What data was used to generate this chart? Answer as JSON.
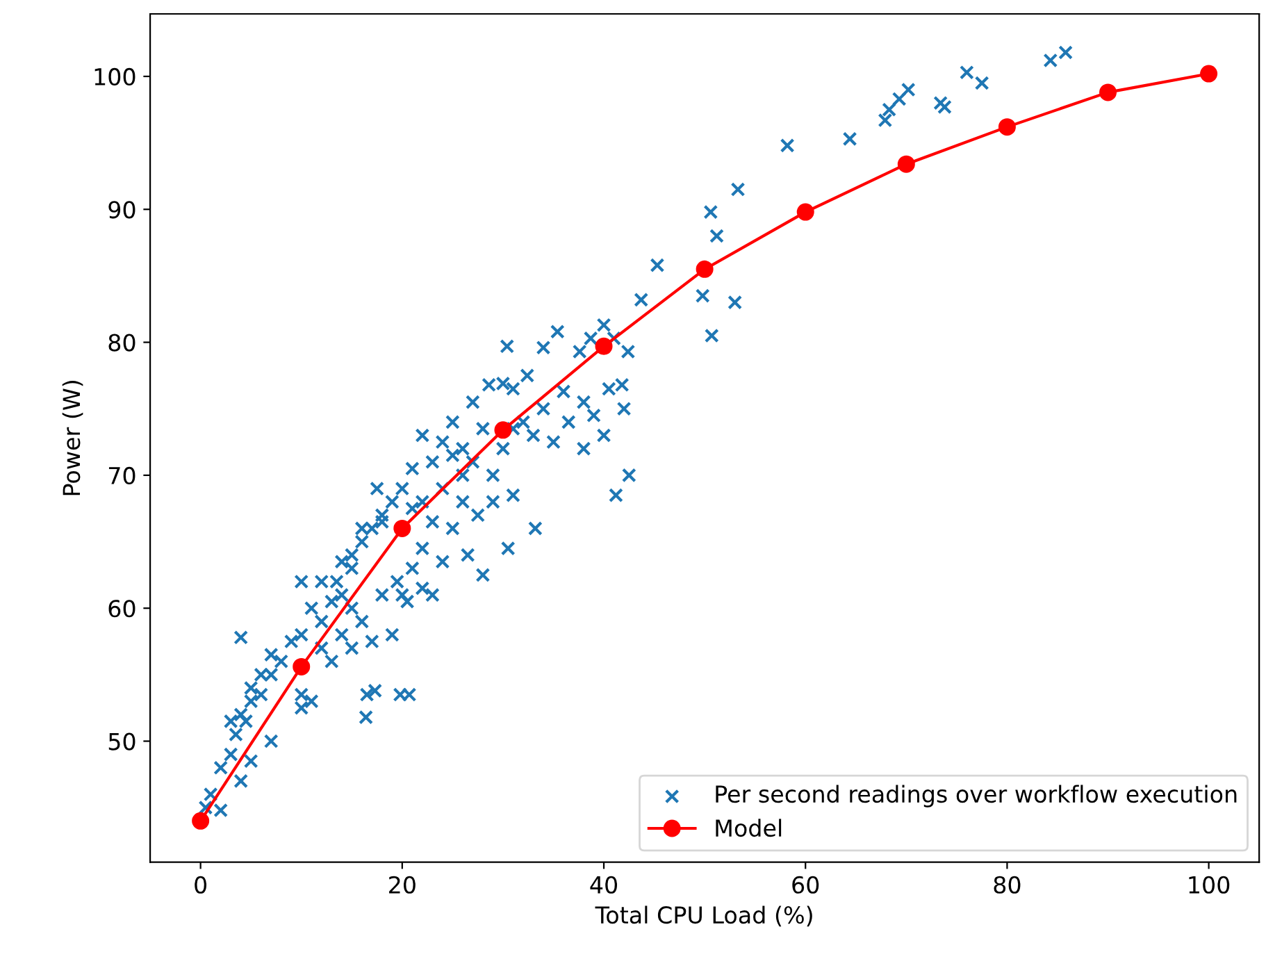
{
  "chart_data": {
    "type": "scatter",
    "xlabel": "Total CPU Load (%)",
    "ylabel": "Power (W)",
    "xlim": [
      -5,
      105
    ],
    "ylim": [
      40.9,
      104.7
    ],
    "xticks": [
      0,
      20,
      40,
      60,
      80,
      100
    ],
    "yticks": [
      50,
      60,
      70,
      80,
      90,
      100
    ],
    "grid": false,
    "legend": "bottom right",
    "series": [
      {
        "name": "Per second readings over workflow execution",
        "color": "#1f77b4",
        "marker": "cross",
        "x": [
          85.8,
          84.3,
          77.5,
          76,
          73.8,
          73.4,
          70.2,
          69.3,
          68.3,
          67.9,
          64.4,
          58.2,
          53.3,
          51.2,
          50.6,
          49.8,
          50.7,
          53,
          45.3,
          43.7,
          42.4,
          41.8,
          41.2,
          42.5,
          40,
          41,
          38.7,
          35.4,
          37.6,
          34,
          30.4,
          32.4,
          28.6,
          30,
          31,
          36,
          38,
          40.5,
          34,
          36.5,
          39,
          38,
          40,
          42,
          35,
          33.2,
          30.5,
          29,
          31,
          27.5,
          28,
          26.5,
          26,
          27,
          28,
          27,
          25,
          24,
          23,
          22,
          25,
          24,
          22,
          21,
          20,
          21,
          23,
          25,
          24,
          23,
          22,
          20.5,
          19.5,
          18,
          17,
          19,
          16.5,
          17.3,
          16.4,
          19.8,
          20.7,
          16,
          15,
          14,
          13.5,
          15,
          16,
          17,
          18,
          19,
          17.5,
          18,
          16,
          15,
          14,
          12,
          10,
          11,
          12,
          13,
          10,
          9,
          8,
          7,
          6,
          5,
          4,
          3,
          4.5,
          3.5,
          5,
          6,
          7,
          4,
          3,
          2,
          1,
          0.5,
          2,
          4,
          5,
          7,
          10,
          11,
          10,
          12,
          14,
          15,
          13,
          21,
          22,
          20,
          26,
          29,
          30,
          32,
          33,
          31,
          26
        ],
        "values": [
          101.8,
          101.2,
          99.5,
          100.3,
          97.7,
          98,
          99,
          98.3,
          97.5,
          96.7,
          95.3,
          94.8,
          91.5,
          88,
          89.8,
          83.5,
          80.5,
          83,
          85.8,
          83.2,
          79.3,
          76.8,
          68.5,
          70,
          81.3,
          80.3,
          80.3,
          80.8,
          79.3,
          79.6,
          79.7,
          77.5,
          76.8,
          76.9,
          76.5,
          76.3,
          75.5,
          76.5,
          75,
          74,
          74.5,
          72,
          73,
          75,
          72.5,
          66,
          64.5,
          68,
          68.5,
          67,
          62.5,
          64,
          70,
          71,
          73.5,
          75.5,
          74,
          72.5,
          71,
          73,
          71.5,
          69,
          68,
          70.5,
          69,
          67.5,
          66.5,
          66,
          63.5,
          61,
          61.5,
          60.5,
          62,
          61,
          57.5,
          58,
          53.5,
          53.8,
          51.8,
          53.5,
          53.5,
          59,
          60,
          61,
          62,
          64,
          65,
          66,
          67,
          68,
          69,
          66.5,
          66,
          63,
          63.5,
          62,
          62,
          60,
          59,
          60.5,
          58,
          57.5,
          56,
          56.5,
          55,
          54,
          52,
          51.5,
          51.5,
          50.5,
          53,
          53.5,
          55,
          57.8,
          49,
          48,
          46,
          45,
          44.8,
          47,
          48.5,
          50,
          53.5,
          53,
          52.5,
          57,
          58,
          57,
          56,
          63,
          64.5,
          61,
          68,
          70,
          72,
          74,
          73,
          73.5,
          72
        ]
      },
      {
        "name": "Model",
        "type": "line",
        "color": "#ff0000",
        "marker": "circle",
        "line_style": "solid",
        "x": [
          0,
          10,
          20,
          30,
          40,
          50,
          60,
          70,
          80,
          90,
          100
        ],
        "values": [
          44,
          55.6,
          66,
          73.4,
          79.7,
          85.5,
          89.8,
          93.4,
          96.2,
          98.8,
          100.2
        ]
      }
    ]
  }
}
